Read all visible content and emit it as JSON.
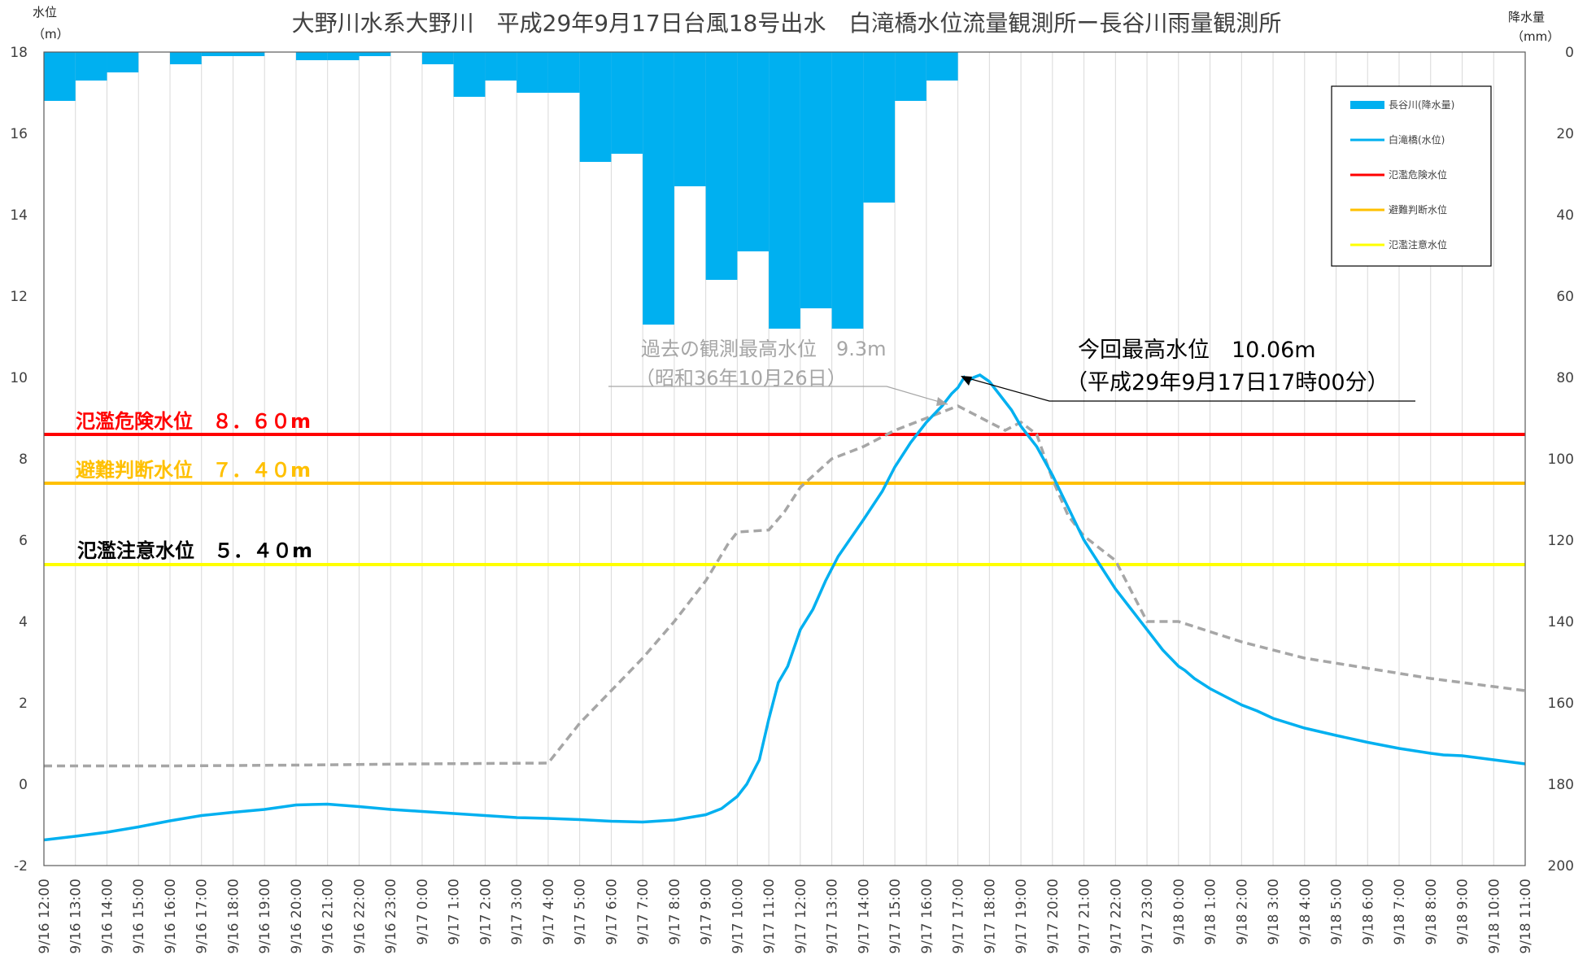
{
  "chart_data": {
    "type": "bar+line",
    "title": "大野川水系大野川　平成29年9月17日台風18号出水　白滝橋水位流量観測所ー長谷川雨量観測所",
    "left_axis": {
      "label": "水位",
      "unit": "（m）",
      "ylim": [
        -2,
        18
      ],
      "ticks": [
        -2,
        0,
        2,
        4,
        6,
        8,
        10,
        12,
        14,
        16,
        18
      ]
    },
    "right_axis": {
      "label": "降水量",
      "unit": "（mm）",
      "ylim": [
        200,
        0
      ],
      "inverted": true,
      "ticks": [
        0,
        20,
        40,
        60,
        80,
        100,
        120,
        140,
        160,
        180,
        200
      ]
    },
    "x_start_hour": 0,
    "x_end_hour": 47,
    "x_tick_labels": [
      "9/16 12:00",
      "9/16 13:00",
      "9/16 14:00",
      "9/16 15:00",
      "9/16 16:00",
      "9/16 17:00",
      "9/16 18:00",
      "9/16 19:00",
      "9/16 20:00",
      "9/16 21:00",
      "9/16 22:00",
      "9/16 23:00",
      "9/17 0:00",
      "9/17 1:00",
      "9/17 2:00",
      "9/17 3:00",
      "9/17 4:00",
      "9/17 5:00",
      "9/17 6:00",
      "9/17 7:00",
      "9/17 8:00",
      "9/17 9:00",
      "9/17 10:00",
      "9/17 11:00",
      "9/17 12:00",
      "9/17 13:00",
      "9/17 14:00",
      "9/17 15:00",
      "9/17 16:00",
      "9/17 17:00",
      "9/17 18:00",
      "9/17 19:00",
      "9/17 20:00",
      "9/17 21:00",
      "9/17 22:00",
      "9/17 23:00",
      "9/18 0:00",
      "9/18 1:00",
      "9/18 2:00",
      "9/18 3:00",
      "9/18 4:00",
      "9/18 5:00",
      "9/18 6:00",
      "9/18 7:00",
      "9/18 8:00",
      "9/18 9:00",
      "9/18 10:00",
      "9/18 11:00"
    ],
    "rainfall": {
      "name": "長谷川(降水量)",
      "color": "#00b0f0",
      "values": [
        12,
        7,
        5,
        0,
        3,
        1,
        1,
        0,
        2,
        2,
        1,
        0,
        3,
        11,
        7,
        10,
        10,
        27,
        25,
        67,
        33,
        56,
        49,
        68,
        63,
        68,
        37,
        12,
        7,
        0,
        0,
        0,
        0,
        0,
        0,
        0,
        0,
        0,
        0,
        0,
        0,
        0,
        0,
        0,
        0,
        0,
        0,
        0
      ]
    },
    "water_level": {
      "name": "白滝橋(水位)",
      "color": "#00b0f0",
      "points": [
        [
          0,
          -1.37
        ],
        [
          1,
          -1.28
        ],
        [
          2,
          -1.18
        ],
        [
          3,
          -1.05
        ],
        [
          4,
          -0.9
        ],
        [
          5,
          -0.77
        ],
        [
          6,
          -0.69
        ],
        [
          7,
          -0.62
        ],
        [
          8,
          -0.51
        ],
        [
          9,
          -0.49
        ],
        [
          10,
          -0.55
        ],
        [
          11,
          -0.62
        ],
        [
          12,
          -0.67
        ],
        [
          13,
          -0.72
        ],
        [
          14,
          -0.77
        ],
        [
          15,
          -0.82
        ],
        [
          16,
          -0.84
        ],
        [
          17,
          -0.87
        ],
        [
          18,
          -0.91
        ],
        [
          19,
          -0.93
        ],
        [
          20,
          -0.88
        ],
        [
          21,
          -0.75
        ],
        [
          21.5,
          -0.6
        ],
        [
          22,
          -0.3
        ],
        [
          22.3,
          0
        ],
        [
          22.7,
          0.6
        ],
        [
          23,
          1.6
        ],
        [
          23.3,
          2.5
        ],
        [
          23.6,
          2.9
        ],
        [
          24,
          3.8
        ],
        [
          24.4,
          4.3
        ],
        [
          24.8,
          5.0
        ],
        [
          25.2,
          5.6
        ],
        [
          26,
          6.5
        ],
        [
          26.6,
          7.2
        ],
        [
          27,
          7.8
        ],
        [
          27.5,
          8.4
        ],
        [
          28,
          8.9
        ],
        [
          28.5,
          9.3
        ],
        [
          28.8,
          9.6
        ],
        [
          29,
          9.75
        ],
        [
          29.2,
          10.0
        ],
        [
          29.3,
          9.9
        ],
        [
          29.5,
          10.0
        ],
        [
          29.7,
          10.06
        ],
        [
          30,
          9.9
        ],
        [
          30.3,
          9.6
        ],
        [
          30.7,
          9.2
        ],
        [
          31,
          8.8
        ],
        [
          31.5,
          8.3
        ],
        [
          32,
          7.6
        ],
        [
          32.5,
          6.8
        ],
        [
          33,
          6.0
        ],
        [
          33.5,
          5.4
        ],
        [
          34,
          4.8
        ],
        [
          34.5,
          4.3
        ],
        [
          35,
          3.8
        ],
        [
          35.5,
          3.3
        ],
        [
          36,
          2.9
        ],
        [
          36.2,
          2.8
        ],
        [
          36.5,
          2.6
        ],
        [
          37,
          2.35
        ],
        [
          37.5,
          2.15
        ],
        [
          38,
          1.95
        ],
        [
          38.5,
          1.8
        ],
        [
          39,
          1.62
        ],
        [
          40,
          1.38
        ],
        [
          41,
          1.2
        ],
        [
          42,
          1.03
        ],
        [
          43,
          0.88
        ],
        [
          44,
          0.76
        ],
        [
          44.4,
          0.72
        ],
        [
          45,
          0.7
        ],
        [
          46,
          0.6
        ],
        [
          47,
          0.5
        ]
      ]
    },
    "historical": {
      "color": "#a6a6a6",
      "points": [
        [
          0,
          0.45
        ],
        [
          4,
          0.45
        ],
        [
          8,
          0.47
        ],
        [
          12,
          0.5
        ],
        [
          16,
          0.52
        ],
        [
          17,
          1.5
        ],
        [
          18,
          2.3
        ],
        [
          19,
          3.1
        ],
        [
          20,
          4.0
        ],
        [
          21,
          5.0
        ],
        [
          21.7,
          5.9
        ],
        [
          22,
          6.2
        ],
        [
          23,
          6.25
        ],
        [
          23.5,
          6.7
        ],
        [
          24,
          7.3
        ],
        [
          25,
          8.0
        ],
        [
          26,
          8.3
        ],
        [
          27,
          8.7
        ],
        [
          28,
          9.0
        ],
        [
          29,
          9.3
        ],
        [
          29.5,
          9.1
        ],
        [
          30,
          8.9
        ],
        [
          30.5,
          8.7
        ],
        [
          31,
          8.9
        ],
        [
          31.5,
          8.6
        ],
        [
          32,
          7.5
        ],
        [
          32.5,
          6.6
        ],
        [
          33,
          6.1
        ],
        [
          34,
          5.5
        ],
        [
          35,
          4.0
        ],
        [
          36,
          4.0
        ],
        [
          37,
          3.75
        ],
        [
          38,
          3.5
        ],
        [
          40,
          3.1
        ],
        [
          42,
          2.85
        ],
        [
          44,
          2.6
        ],
        [
          46,
          2.4
        ],
        [
          47,
          2.3
        ]
      ]
    },
    "reference_lines": [
      {
        "name": "氾濫危険水位",
        "value": 8.6,
        "color": "#ff0000",
        "label": "氾濫危険水位　８．６０m",
        "label_color": "#ff0000"
      },
      {
        "name": "避難判断水位",
        "value": 7.4,
        "color": "#ffc000",
        "label": "避難判断水位　７．４０m",
        "label_color": "#ffc000"
      },
      {
        "name": "氾濫注意水位",
        "value": 5.4,
        "color": "#ffff00",
        "label": "氾濫注意水位　５．４０m",
        "label_color": "#000000"
      }
    ],
    "annotations": {
      "historical_peak_line1": "過去の観測最高水位　9.3m",
      "historical_peak_line2": "（昭和36年10月26日）",
      "current_peak_line1": "今回最高水位　10.06m",
      "current_peak_line2": "（平成29年9月17日17時00分）"
    },
    "legend": {
      "position": "top-right",
      "entries": [
        {
          "label": "長谷川(降水量)",
          "kind": "bar",
          "color": "#00b0f0"
        },
        {
          "label": "白滝橋(水位)",
          "kind": "line",
          "color": "#00b0f0"
        },
        {
          "label": "氾濫危険水位",
          "kind": "line",
          "color": "#ff0000"
        },
        {
          "label": "避難判断水位",
          "kind": "line",
          "color": "#ffc000"
        },
        {
          "label": "氾濫注意水位",
          "kind": "line",
          "color": "#ffff00"
        }
      ]
    },
    "grid": true
  }
}
